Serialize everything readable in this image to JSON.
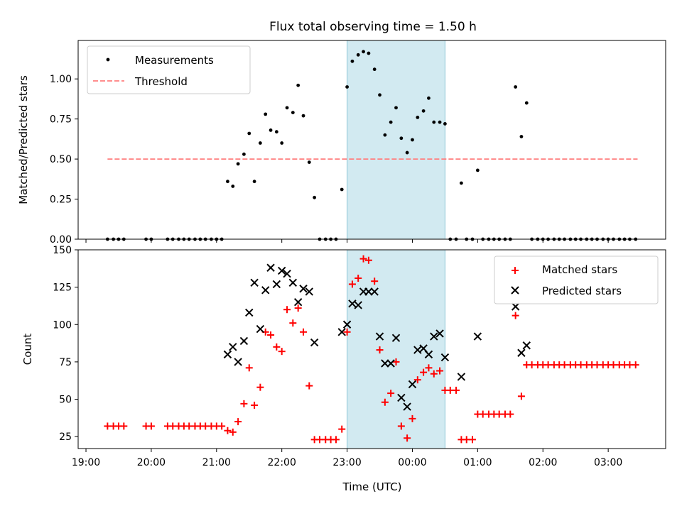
{
  "title": "Flux total observing time = 1.50 h",
  "colors": {
    "measure": "#000000",
    "threshold": "#ff7f7f",
    "matched": "#ff0000",
    "predicted": "#000000",
    "band": "#add8e6"
  },
  "x_axis": {
    "label": "Time (UTC)",
    "ticks": [
      {
        "x": 19.0,
        "label": "19:00"
      },
      {
        "x": 20.0,
        "label": "20:00"
      },
      {
        "x": 21.0,
        "label": "21:00"
      },
      {
        "x": 22.0,
        "label": "22:00"
      },
      {
        "x": 23.0,
        "label": "23:00"
      },
      {
        "x": 24.0,
        "label": "00:00"
      },
      {
        "x": 25.0,
        "label": "01:00"
      },
      {
        "x": 26.0,
        "label": "02:00"
      },
      {
        "x": 27.0,
        "label": "03:00"
      }
    ]
  },
  "chart_data": [
    {
      "type": "scatter",
      "panel": "top",
      "ylabel": "Matched/Predicted stars",
      "xlim": [
        18.88,
        27.88
      ],
      "ylim": [
        0.0,
        1.24
      ],
      "yticks": [
        {
          "v": 0.0,
          "label": "0.00"
        },
        {
          "v": 0.25,
          "label": "0.25"
        },
        {
          "v": 0.5,
          "label": "0.50"
        },
        {
          "v": 0.75,
          "label": "0.75"
        },
        {
          "v": 1.0,
          "label": "1.00"
        }
      ],
      "band": [
        23.0,
        24.5
      ],
      "threshold": {
        "name": "Threshold",
        "y": 0.5,
        "x": [
          19.33,
          27.45
        ]
      },
      "legend": {
        "placement": "upper-left",
        "entries": [
          "Measurements",
          "Threshold"
        ]
      },
      "series": [
        {
          "name": "Measurements",
          "points": [
            [
              19.33,
              0
            ],
            [
              19.42,
              0
            ],
            [
              19.5,
              0
            ],
            [
              19.58,
              0
            ],
            [
              19.92,
              0
            ],
            [
              20.0,
              0
            ],
            [
              20.25,
              0
            ],
            [
              20.33,
              0
            ],
            [
              20.42,
              0
            ],
            [
              20.5,
              0
            ],
            [
              20.58,
              0
            ],
            [
              20.67,
              0
            ],
            [
              20.75,
              0
            ],
            [
              20.83,
              0
            ],
            [
              20.92,
              0
            ],
            [
              21.0,
              0
            ],
            [
              21.08,
              0
            ],
            [
              21.17,
              0.36
            ],
            [
              21.25,
              0.33
            ],
            [
              21.33,
              0.47
            ],
            [
              21.42,
              0.53
            ],
            [
              21.5,
              0.66
            ],
            [
              21.58,
              0.36
            ],
            [
              21.67,
              0.6
            ],
            [
              21.75,
              0.78
            ],
            [
              21.83,
              0.68
            ],
            [
              21.92,
              0.67
            ],
            [
              22.0,
              0.6
            ],
            [
              22.08,
              0.82
            ],
            [
              22.17,
              0.79
            ],
            [
              22.25,
              0.96
            ],
            [
              22.33,
              0.77
            ],
            [
              22.42,
              0.48
            ],
            [
              22.5,
              0.26
            ],
            [
              22.58,
              0
            ],
            [
              22.67,
              0
            ],
            [
              22.75,
              0
            ],
            [
              22.83,
              0
            ],
            [
              22.92,
              0.31
            ],
            [
              23.0,
              0.95
            ],
            [
              23.08,
              1.11
            ],
            [
              23.17,
              1.15
            ],
            [
              23.25,
              1.17
            ],
            [
              23.33,
              1.16
            ],
            [
              23.42,
              1.06
            ],
            [
              23.5,
              0.9
            ],
            [
              23.58,
              0.65
            ],
            [
              23.67,
              0.73
            ],
            [
              23.75,
              0.82
            ],
            [
              23.83,
              0.63
            ],
            [
              23.92,
              0.54
            ],
            [
              24.0,
              0.62
            ],
            [
              24.08,
              0.76
            ],
            [
              24.17,
              0.8
            ],
            [
              24.25,
              0.88
            ],
            [
              24.33,
              0.73
            ],
            [
              24.42,
              0.73
            ],
            [
              24.5,
              0.72
            ],
            [
              24.58,
              0
            ],
            [
              24.67,
              0
            ],
            [
              24.75,
              0.35
            ],
            [
              24.83,
              0
            ],
            [
              24.92,
              0
            ],
            [
              25.0,
              0.43
            ],
            [
              25.08,
              0
            ],
            [
              25.17,
              0
            ],
            [
              25.25,
              0
            ],
            [
              25.33,
              0
            ],
            [
              25.42,
              0
            ],
            [
              25.5,
              0
            ],
            [
              25.58,
              0.95
            ],
            [
              25.67,
              0.64
            ],
            [
              25.75,
              0.85
            ],
            [
              25.83,
              0
            ],
            [
              25.92,
              0
            ],
            [
              26.0,
              0
            ],
            [
              26.08,
              0
            ],
            [
              26.17,
              0
            ],
            [
              26.25,
              0
            ],
            [
              26.33,
              0
            ],
            [
              26.42,
              0
            ],
            [
              26.5,
              0
            ],
            [
              26.58,
              0
            ],
            [
              26.67,
              0
            ],
            [
              26.75,
              0
            ],
            [
              26.83,
              0
            ],
            [
              26.92,
              0
            ],
            [
              27.0,
              0
            ],
            [
              27.08,
              0
            ],
            [
              27.17,
              0
            ],
            [
              27.25,
              0
            ],
            [
              27.33,
              0
            ],
            [
              27.42,
              0
            ]
          ]
        }
      ]
    },
    {
      "type": "scatter",
      "panel": "bottom",
      "ylabel": "Count",
      "xlim": [
        18.88,
        27.88
      ],
      "ylim": [
        17,
        150
      ],
      "yticks": [
        {
          "v": 25,
          "label": "25"
        },
        {
          "v": 50,
          "label": "50"
        },
        {
          "v": 75,
          "label": "75"
        },
        {
          "v": 100,
          "label": "100"
        },
        {
          "v": 125,
          "label": "125"
        },
        {
          "v": 150,
          "label": "150"
        }
      ],
      "band": [
        23.0,
        24.5
      ],
      "legend": {
        "placement": "upper-right",
        "entries": [
          "Matched stars",
          "Predicted stars"
        ]
      },
      "series": [
        {
          "name": "Matched stars",
          "marker": "plus",
          "points": [
            [
              19.33,
              32
            ],
            [
              19.42,
              32
            ],
            [
              19.5,
              32
            ],
            [
              19.58,
              32
            ],
            [
              19.92,
              32
            ],
            [
              20.0,
              32
            ],
            [
              20.25,
              32
            ],
            [
              20.33,
              32
            ],
            [
              20.42,
              32
            ],
            [
              20.5,
              32
            ],
            [
              20.58,
              32
            ],
            [
              20.67,
              32
            ],
            [
              20.75,
              32
            ],
            [
              20.83,
              32
            ],
            [
              20.92,
              32
            ],
            [
              21.0,
              32
            ],
            [
              21.08,
              32
            ],
            [
              21.17,
              29
            ],
            [
              21.25,
              28
            ],
            [
              21.33,
              35
            ],
            [
              21.42,
              47
            ],
            [
              21.5,
              71
            ],
            [
              21.58,
              46
            ],
            [
              21.67,
              58
            ],
            [
              21.75,
              95
            ],
            [
              21.83,
              93
            ],
            [
              21.92,
              85
            ],
            [
              22.0,
              82
            ],
            [
              22.08,
              110
            ],
            [
              22.17,
              101
            ],
            [
              22.25,
              111
            ],
            [
              22.33,
              95
            ],
            [
              22.42,
              59
            ],
            [
              22.5,
              23
            ],
            [
              22.58,
              23
            ],
            [
              22.67,
              23
            ],
            [
              22.75,
              23
            ],
            [
              22.83,
              23
            ],
            [
              22.92,
              30
            ],
            [
              23.0,
              95
            ],
            [
              23.08,
              127
            ],
            [
              23.17,
              131
            ],
            [
              23.25,
              144
            ],
            [
              23.33,
              143
            ],
            [
              23.42,
              129
            ],
            [
              23.5,
              83
            ],
            [
              23.58,
              48
            ],
            [
              23.67,
              54
            ],
            [
              23.75,
              75
            ],
            [
              23.83,
              32
            ],
            [
              23.92,
              24
            ],
            [
              24.0,
              37
            ],
            [
              24.08,
              63
            ],
            [
              24.17,
              68
            ],
            [
              24.25,
              71
            ],
            [
              24.33,
              67
            ],
            [
              24.42,
              69
            ],
            [
              24.5,
              56
            ],
            [
              24.58,
              56
            ],
            [
              24.67,
              56
            ],
            [
              24.75,
              23
            ],
            [
              24.83,
              23
            ],
            [
              24.92,
              23
            ],
            [
              25.0,
              40
            ],
            [
              25.08,
              40
            ],
            [
              25.17,
              40
            ],
            [
              25.25,
              40
            ],
            [
              25.33,
              40
            ],
            [
              25.42,
              40
            ],
            [
              25.5,
              40
            ],
            [
              25.58,
              106
            ],
            [
              25.67,
              52
            ],
            [
              25.75,
              73
            ],
            [
              25.83,
              73
            ],
            [
              25.92,
              73
            ],
            [
              26.0,
              73
            ],
            [
              26.08,
              73
            ],
            [
              26.17,
              73
            ],
            [
              26.25,
              73
            ],
            [
              26.33,
              73
            ],
            [
              26.42,
              73
            ],
            [
              26.5,
              73
            ],
            [
              26.58,
              73
            ],
            [
              26.67,
              73
            ],
            [
              26.75,
              73
            ],
            [
              26.83,
              73
            ],
            [
              26.92,
              73
            ],
            [
              27.0,
              73
            ],
            [
              27.08,
              73
            ],
            [
              27.17,
              73
            ],
            [
              27.25,
              73
            ],
            [
              27.33,
              73
            ],
            [
              27.42,
              73
            ]
          ]
        },
        {
          "name": "Predicted stars",
          "marker": "x",
          "points": [
            [
              21.17,
              80
            ],
            [
              21.25,
              85
            ],
            [
              21.33,
              75
            ],
            [
              21.42,
              89
            ],
            [
              21.5,
              108
            ],
            [
              21.58,
              128
            ],
            [
              21.67,
              97
            ],
            [
              21.75,
              123
            ],
            [
              21.83,
              138
            ],
            [
              21.92,
              127
            ],
            [
              22.0,
              136
            ],
            [
              22.08,
              134
            ],
            [
              22.17,
              128
            ],
            [
              22.25,
              115
            ],
            [
              22.33,
              124
            ],
            [
              22.42,
              122
            ],
            [
              22.5,
              88
            ],
            [
              22.92,
              95
            ],
            [
              23.0,
              100
            ],
            [
              23.08,
              114
            ],
            [
              23.17,
              113
            ],
            [
              23.25,
              122
            ],
            [
              23.33,
              122
            ],
            [
              23.42,
              122
            ],
            [
              23.5,
              92
            ],
            [
              23.58,
              74
            ],
            [
              23.67,
              74
            ],
            [
              23.75,
              91
            ],
            [
              23.83,
              51
            ],
            [
              23.92,
              45
            ],
            [
              24.0,
              60
            ],
            [
              24.08,
              83
            ],
            [
              24.17,
              84
            ],
            [
              24.25,
              80
            ],
            [
              24.33,
              92
            ],
            [
              24.42,
              94
            ],
            [
              24.5,
              78
            ],
            [
              24.75,
              65
            ],
            [
              25.0,
              92
            ],
            [
              25.58,
              112
            ],
            [
              25.67,
              81
            ],
            [
              25.75,
              86
            ]
          ]
        }
      ]
    }
  ]
}
